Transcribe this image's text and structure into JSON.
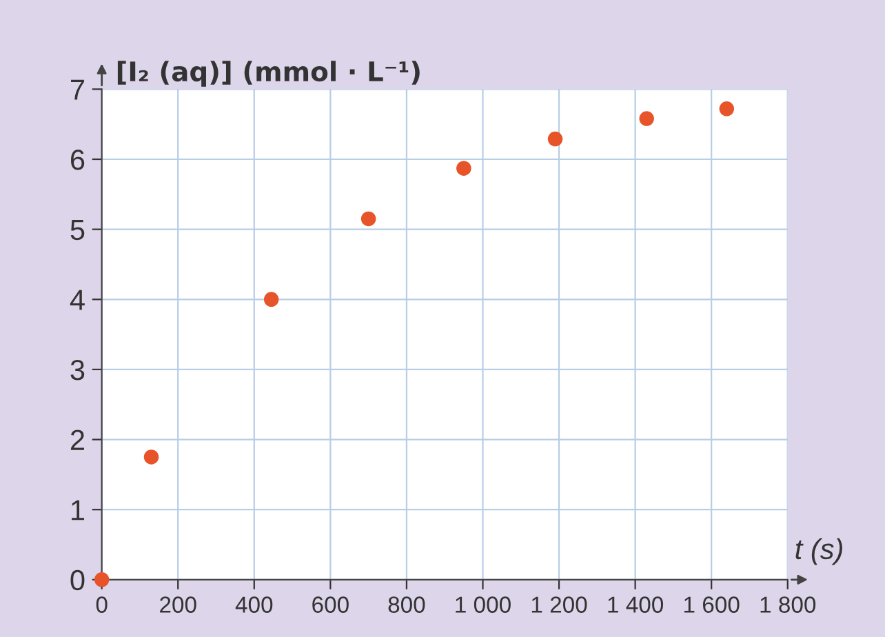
{
  "chart_data": {
    "type": "scatter",
    "xlabel": "t (s)",
    "ylabel": "[I₂ (aq)] (mmol · L⁻¹)",
    "x": [
      0,
      130,
      445,
      700,
      950,
      1190,
      1430,
      1640
    ],
    "series": [
      {
        "color": "#e8542a",
        "values": [
          0,
          1.75,
          4.0,
          5.15,
          5.87,
          6.29,
          6.58,
          6.72
        ]
      }
    ],
    "xlim": [
      0,
      1800
    ],
    "ylim": [
      0,
      7
    ],
    "xticks": [
      0,
      200,
      400,
      600,
      800,
      {
        "value": 1000,
        "label": "1 000"
      },
      {
        "value": 1200,
        "label": "1 200"
      },
      {
        "value": 1400,
        "label": "1 400"
      },
      {
        "value": 1600,
        "label": "1 600"
      },
      {
        "value": 1800,
        "label": "1 800"
      }
    ],
    "yticks": [
      0,
      1,
      2,
      3,
      4,
      5,
      6,
      7
    ],
    "grid": true,
    "marker": "circle"
  }
}
